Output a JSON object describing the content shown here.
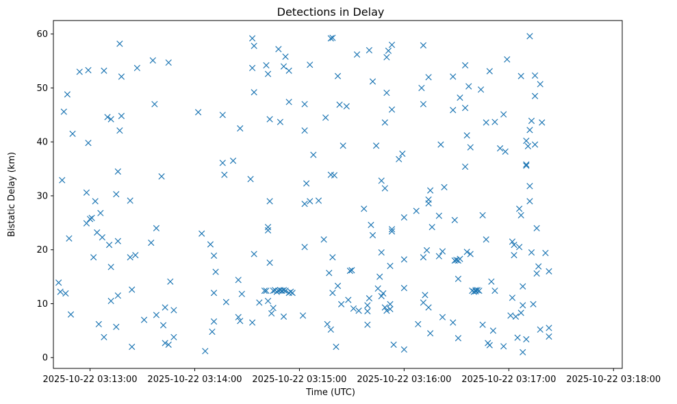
{
  "chart_data": {
    "type": "scatter",
    "title": "Detections in Delay",
    "xlabel": "Time (UTC)",
    "ylabel": "Bistatic Delay (km)",
    "marker": "x",
    "color": "#1f77b4",
    "grid": false,
    "xlim": [
      "2025-10-22 03:12:39",
      "2025-10-22 03:18:05"
    ],
    "ylim": [
      -2,
      62.5
    ],
    "x_ticks": [
      "2025-10-22 03:13:00",
      "2025-10-22 03:14:00",
      "2025-10-22 03:15:00",
      "2025-10-22 03:16:00",
      "2025-10-22 03:17:00",
      "2025-10-22 03:18:00"
    ],
    "y_ticks": [
      0,
      10,
      20,
      30,
      40,
      50,
      60
    ],
    "points": [
      [
        "2025-10-22 03:12:42",
        13.9
      ],
      [
        "2025-10-22 03:12:43",
        12.2
      ],
      [
        "2025-10-22 03:12:44",
        32.9
      ],
      [
        "2025-10-22 03:12:45",
        45.6
      ],
      [
        "2025-10-22 03:12:46",
        11.9
      ],
      [
        "2025-10-22 03:12:47",
        48.8
      ],
      [
        "2025-10-22 03:12:48",
        22.1
      ],
      [
        "2025-10-22 03:12:49",
        8.0
      ],
      [
        "2025-10-22 03:12:50",
        41.5
      ],
      [
        "2025-10-22 03:12:54",
        53.0
      ],
      [
        "2025-10-22 03:12:58",
        30.6
      ],
      [
        "2025-10-22 03:12:58",
        24.9
      ],
      [
        "2025-10-22 03:12:59",
        53.3
      ],
      [
        "2025-10-22 03:12:59",
        39.8
      ],
      [
        "2025-10-22 03:13:00",
        25.7
      ],
      [
        "2025-10-22 03:13:01",
        25.9
      ],
      [
        "2025-10-22 03:13:02",
        18.6
      ],
      [
        "2025-10-22 03:13:03",
        29.0
      ],
      [
        "2025-10-22 03:13:04",
        23.2
      ],
      [
        "2025-10-22 03:13:05",
        6.2
      ],
      [
        "2025-10-22 03:13:06",
        26.8
      ],
      [
        "2025-10-22 03:13:07",
        22.3
      ],
      [
        "2025-10-22 03:13:08",
        53.2
      ],
      [
        "2025-10-22 03:13:08",
        3.8
      ],
      [
        "2025-10-22 03:13:10",
        44.6
      ],
      [
        "2025-10-22 03:13:11",
        20.9
      ],
      [
        "2025-10-22 03:13:12",
        44.2
      ],
      [
        "2025-10-22 03:13:12",
        16.8
      ],
      [
        "2025-10-22 03:13:12",
        10.5
      ],
      [
        "2025-10-22 03:13:15",
        30.3
      ],
      [
        "2025-10-22 03:13:15",
        5.7
      ],
      [
        "2025-10-22 03:13:16",
        34.5
      ],
      [
        "2025-10-22 03:13:16",
        21.6
      ],
      [
        "2025-10-22 03:13:16",
        11.5
      ],
      [
        "2025-10-22 03:13:17",
        58.2
      ],
      [
        "2025-10-22 03:13:17",
        42.1
      ],
      [
        "2025-10-22 03:13:18",
        44.8
      ],
      [
        "2025-10-22 03:13:18",
        52.1
      ],
      [
        "2025-10-22 03:13:23",
        29.1
      ],
      [
        "2025-10-22 03:13:23",
        18.6
      ],
      [
        "2025-10-22 03:13:24",
        12.6
      ],
      [
        "2025-10-22 03:13:24",
        2.0
      ],
      [
        "2025-10-22 03:13:26",
        19.0
      ],
      [
        "2025-10-22 03:13:27",
        53.7
      ],
      [
        "2025-10-22 03:13:31",
        7.0
      ],
      [
        "2025-10-22 03:13:35",
        21.3
      ],
      [
        "2025-10-22 03:13:36",
        55.1
      ],
      [
        "2025-10-22 03:13:37",
        47.0
      ],
      [
        "2025-10-22 03:13:38",
        24.0
      ],
      [
        "2025-10-22 03:13:38",
        7.9
      ],
      [
        "2025-10-22 03:13:41",
        33.6
      ],
      [
        "2025-10-22 03:13:42",
        6.0
      ],
      [
        "2025-10-22 03:13:43",
        9.3
      ],
      [
        "2025-10-22 03:13:43",
        2.7
      ],
      [
        "2025-10-22 03:13:45",
        2.4
      ],
      [
        "2025-10-22 03:13:45",
        54.7
      ],
      [
        "2025-10-22 03:13:46",
        14.1
      ],
      [
        "2025-10-22 03:13:48",
        3.8
      ],
      [
        "2025-10-22 03:13:48",
        8.8
      ],
      [
        "2025-10-22 03:14:02",
        45.5
      ],
      [
        "2025-10-22 03:14:04",
        23.0
      ],
      [
        "2025-10-22 03:14:06",
        1.2
      ],
      [
        "2025-10-22 03:14:09",
        21.0
      ],
      [
        "2025-10-22 03:14:10",
        4.8
      ],
      [
        "2025-10-22 03:14:11",
        12.0
      ],
      [
        "2025-10-22 03:14:11",
        6.7
      ],
      [
        "2025-10-22 03:14:11",
        18.9
      ],
      [
        "2025-10-22 03:14:12",
        15.9
      ],
      [
        "2025-10-22 03:14:16",
        36.1
      ],
      [
        "2025-10-22 03:14:16",
        45.0
      ],
      [
        "2025-10-22 03:14:17",
        33.9
      ],
      [
        "2025-10-22 03:14:18",
        10.3
      ],
      [
        "2025-10-22 03:14:22",
        36.5
      ],
      [
        "2025-10-22 03:14:25",
        14.4
      ],
      [
        "2025-10-22 03:14:25",
        7.5
      ],
      [
        "2025-10-22 03:14:26",
        6.8
      ],
      [
        "2025-10-22 03:14:26",
        42.5
      ],
      [
        "2025-10-22 03:14:27",
        11.8
      ],
      [
        "2025-10-22 03:14:32",
        33.1
      ],
      [
        "2025-10-22 03:14:33",
        53.7
      ],
      [
        "2025-10-22 03:14:33",
        59.2
      ],
      [
        "2025-10-22 03:14:33",
        6.5
      ],
      [
        "2025-10-22 03:14:34",
        19.2
      ],
      [
        "2025-10-22 03:14:34",
        57.8
      ],
      [
        "2025-10-22 03:14:34",
        49.2
      ],
      [
        "2025-10-22 03:14:37",
        10.2
      ],
      [
        "2025-10-22 03:14:40",
        12.4
      ],
      [
        "2025-10-22 03:14:41",
        54.2
      ],
      [
        "2025-10-22 03:14:41",
        12.4
      ],
      [
        "2025-10-22 03:14:42",
        24.2
      ],
      [
        "2025-10-22 03:14:42",
        23.6
      ],
      [
        "2025-10-22 03:14:42",
        52.6
      ],
      [
        "2025-10-22 03:14:42",
        10.5
      ],
      [
        "2025-10-22 03:14:43",
        29.0
      ],
      [
        "2025-10-22 03:14:43",
        17.6
      ],
      [
        "2025-10-22 03:14:43",
        44.2
      ],
      [
        "2025-10-22 03:14:44",
        8.2
      ],
      [
        "2025-10-22 03:14:45",
        9.2
      ],
      [
        "2025-10-22 03:14:45",
        12.4
      ],
      [
        "2025-10-22 03:14:46",
        12.5
      ],
      [
        "2025-10-22 03:14:47",
        12.2
      ],
      [
        "2025-10-22 03:14:48",
        12.4
      ],
      [
        "2025-10-22 03:14:48",
        57.2
      ],
      [
        "2025-10-22 03:14:49",
        43.7
      ],
      [
        "2025-10-22 03:14:49",
        12.5
      ],
      [
        "2025-10-22 03:14:50",
        12.4
      ],
      [
        "2025-10-22 03:14:51",
        12.5
      ],
      [
        "2025-10-22 03:14:51",
        7.6
      ],
      [
        "2025-10-22 03:14:51",
        54.0
      ],
      [
        "2025-10-22 03:14:52",
        12.4
      ],
      [
        "2025-10-22 03:14:52",
        55.8
      ],
      [
        "2025-10-22 03:14:54",
        12.0
      ],
      [
        "2025-10-22 03:14:54",
        53.2
      ],
      [
        "2025-10-22 03:14:54",
        47.4
      ],
      [
        "2025-10-22 03:14:55",
        12.2
      ],
      [
        "2025-10-22 03:14:56",
        12.0
      ],
      [
        "2025-10-22 03:15:02",
        7.8
      ],
      [
        "2025-10-22 03:15:03",
        42.1
      ],
      [
        "2025-10-22 03:15:03",
        47.0
      ],
      [
        "2025-10-22 03:15:03",
        28.5
      ],
      [
        "2025-10-22 03:15:03",
        20.5
      ],
      [
        "2025-10-22 03:15:04",
        32.3
      ],
      [
        "2025-10-22 03:15:06",
        29.0
      ],
      [
        "2025-10-22 03:15:06",
        54.3
      ],
      [
        "2025-10-22 03:15:08",
        37.6
      ],
      [
        "2025-10-22 03:15:11",
        29.1
      ],
      [
        "2025-10-22 03:15:14",
        21.9
      ],
      [
        "2025-10-22 03:15:15",
        44.5
      ],
      [
        "2025-10-22 03:15:16",
        6.2
      ],
      [
        "2025-10-22 03:15:17",
        15.7
      ],
      [
        "2025-10-22 03:15:18",
        59.2
      ],
      [
        "2025-10-22 03:15:18",
        33.9
      ],
      [
        "2025-10-22 03:15:18",
        5.2
      ],
      [
        "2025-10-22 03:15:19",
        59.3
      ],
      [
        "2025-10-22 03:15:19",
        18.6
      ],
      [
        "2025-10-22 03:15:19",
        12.0
      ],
      [
        "2025-10-22 03:15:20",
        33.8
      ],
      [
        "2025-10-22 03:15:21",
        2.0
      ],
      [
        "2025-10-22 03:15:22",
        52.2
      ],
      [
        "2025-10-22 03:15:22",
        13.3
      ],
      [
        "2025-10-22 03:15:23",
        46.9
      ],
      [
        "2025-10-22 03:15:24",
        9.9
      ],
      [
        "2025-10-22 03:15:25",
        39.3
      ],
      [
        "2025-10-22 03:15:27",
        46.6
      ],
      [
        "2025-10-22 03:15:28",
        10.7
      ],
      [
        "2025-10-22 03:15:29",
        16.1
      ],
      [
        "2025-10-22 03:15:30",
        16.2
      ],
      [
        "2025-10-22 03:15:31",
        9.1
      ],
      [
        "2025-10-22 03:15:33",
        56.2
      ],
      [
        "2025-10-22 03:15:34",
        8.7
      ],
      [
        "2025-10-22 03:15:37",
        27.6
      ],
      [
        "2025-10-22 03:15:39",
        6.1
      ],
      [
        "2025-10-22 03:15:39",
        9.7
      ],
      [
        "2025-10-22 03:15:39",
        8.6
      ],
      [
        "2025-10-22 03:15:40",
        11.0
      ],
      [
        "2025-10-22 03:15:40",
        57.0
      ],
      [
        "2025-10-22 03:15:41",
        24.6
      ],
      [
        "2025-10-22 03:15:42",
        22.7
      ],
      [
        "2025-10-22 03:15:42",
        51.2
      ],
      [
        "2025-10-22 03:15:44",
        39.3
      ],
      [
        "2025-10-22 03:15:45",
        12.8
      ],
      [
        "2025-10-22 03:15:46",
        15.0
      ],
      [
        "2025-10-22 03:15:47",
        19.5
      ],
      [
        "2025-10-22 03:15:47",
        32.8
      ],
      [
        "2025-10-22 03:15:47",
        11.4
      ],
      [
        "2025-10-22 03:15:48",
        11.9
      ],
      [
        "2025-10-22 03:15:49",
        43.6
      ],
      [
        "2025-10-22 03:15:49",
        31.4
      ],
      [
        "2025-10-22 03:15:49",
        9.3
      ],
      [
        "2025-10-22 03:15:50",
        55.7
      ],
      [
        "2025-10-22 03:15:50",
        49.1
      ],
      [
        "2025-10-22 03:15:50",
        8.7
      ],
      [
        "2025-10-22 03:15:51",
        56.9
      ],
      [
        "2025-10-22 03:15:52",
        9.9
      ],
      [
        "2025-10-22 03:15:52",
        17.0
      ],
      [
        "2025-10-22 03:15:52",
        9.0
      ],
      [
        "2025-10-22 03:15:53",
        58.0
      ],
      [
        "2025-10-22 03:15:53",
        23.4
      ],
      [
        "2025-10-22 03:15:53",
        46.0
      ],
      [
        "2025-10-22 03:15:53",
        23.8
      ],
      [
        "2025-10-22 03:15:54",
        2.4
      ],
      [
        "2025-10-22 03:15:57",
        36.8
      ],
      [
        "2025-10-22 03:15:59",
        37.8
      ],
      [
        "2025-10-22 03:16:00",
        18.2
      ],
      [
        "2025-10-22 03:16:00",
        12.9
      ],
      [
        "2025-10-22 03:16:00",
        26.0
      ],
      [
        "2025-10-22 03:16:00",
        1.5
      ],
      [
        "2025-10-22 03:16:07",
        27.2
      ],
      [
        "2025-10-22 03:16:08",
        6.2
      ],
      [
        "2025-10-22 03:16:10",
        50.0
      ],
      [
        "2025-10-22 03:16:11",
        57.9
      ],
      [
        "2025-10-22 03:16:11",
        47.0
      ],
      [
        "2025-10-22 03:16:11",
        18.6
      ],
      [
        "2025-10-22 03:16:11",
        10.2
      ],
      [
        "2025-10-22 03:16:12",
        11.6
      ],
      [
        "2025-10-22 03:16:13",
        19.9
      ],
      [
        "2025-10-22 03:16:14",
        52.0
      ],
      [
        "2025-10-22 03:16:14",
        29.3
      ],
      [
        "2025-10-22 03:16:14",
        28.6
      ],
      [
        "2025-10-22 03:16:14",
        9.3
      ],
      [
        "2025-10-22 03:16:15",
        31.0
      ],
      [
        "2025-10-22 03:16:15",
        4.5
      ],
      [
        "2025-10-22 03:16:16",
        24.2
      ],
      [
        "2025-10-22 03:16:20",
        26.3
      ],
      [
        "2025-10-22 03:16:20",
        18.8
      ],
      [
        "2025-10-22 03:16:21",
        39.5
      ],
      [
        "2025-10-22 03:16:22",
        19.7
      ],
      [
        "2025-10-22 03:16:22",
        7.5
      ],
      [
        "2025-10-22 03:16:23",
        31.6
      ],
      [
        "2025-10-22 03:16:28",
        6.5
      ],
      [
        "2025-10-22 03:16:28",
        45.9
      ],
      [
        "2025-10-22 03:16:28",
        52.1
      ],
      [
        "2025-10-22 03:16:29",
        18.0
      ],
      [
        "2025-10-22 03:16:29",
        25.5
      ],
      [
        "2025-10-22 03:16:30",
        18.1
      ],
      [
        "2025-10-22 03:16:31",
        18.0
      ],
      [
        "2025-10-22 03:16:31",
        3.6
      ],
      [
        "2025-10-22 03:16:31",
        14.6
      ],
      [
        "2025-10-22 03:16:32",
        48.2
      ],
      [
        "2025-10-22 03:16:32",
        18.3
      ],
      [
        "2025-10-22 03:16:35",
        54.2
      ],
      [
        "2025-10-22 03:16:35",
        46.3
      ],
      [
        "2025-10-22 03:16:35",
        35.4
      ],
      [
        "2025-10-22 03:16:36",
        41.2
      ],
      [
        "2025-10-22 03:16:36",
        19.6
      ],
      [
        "2025-10-22 03:16:37",
        50.3
      ],
      [
        "2025-10-22 03:16:38",
        39.0
      ],
      [
        "2025-10-22 03:16:38",
        19.2
      ],
      [
        "2025-10-22 03:16:39",
        12.4
      ],
      [
        "2025-10-22 03:16:40",
        12.2
      ],
      [
        "2025-10-22 03:16:41",
        12.5
      ],
      [
        "2025-10-22 03:16:41",
        12.3
      ],
      [
        "2025-10-22 03:16:42",
        12.5
      ],
      [
        "2025-10-22 03:16:43",
        12.4
      ],
      [
        "2025-10-22 03:16:44",
        49.7
      ],
      [
        "2025-10-22 03:16:45",
        26.4
      ],
      [
        "2025-10-22 03:16:45",
        6.1
      ],
      [
        "2025-10-22 03:16:47",
        21.9
      ],
      [
        "2025-10-22 03:16:47",
        43.6
      ],
      [
        "2025-10-22 03:16:48",
        2.7
      ],
      [
        "2025-10-22 03:16:49",
        2.3
      ],
      [
        "2025-10-22 03:16:49",
        53.1
      ],
      [
        "2025-10-22 03:16:50",
        14.1
      ],
      [
        "2025-10-22 03:16:51",
        5.0
      ],
      [
        "2025-10-22 03:16:52",
        43.7
      ],
      [
        "2025-10-22 03:16:52",
        12.4
      ],
      [
        "2025-10-22 03:16:55",
        38.8
      ],
      [
        "2025-10-22 03:16:57",
        45.1
      ],
      [
        "2025-10-22 03:16:57",
        2.1
      ],
      [
        "2025-10-22 03:16:58",
        38.2
      ],
      [
        "2025-10-22 03:16:59",
        55.3
      ],
      [
        "2025-10-22 03:17:01",
        7.8
      ],
      [
        "2025-10-22 03:17:02",
        21.5
      ],
      [
        "2025-10-22 03:17:02",
        11.1
      ],
      [
        "2025-10-22 03:17:03",
        20.9
      ],
      [
        "2025-10-22 03:17:03",
        19.0
      ],
      [
        "2025-10-22 03:17:04",
        7.6
      ],
      [
        "2025-10-22 03:17:05",
        3.7
      ],
      [
        "2025-10-22 03:17:06",
        27.6
      ],
      [
        "2025-10-22 03:17:06",
        20.5
      ],
      [
        "2025-10-22 03:17:07",
        26.4
      ],
      [
        "2025-10-22 03:17:07",
        52.2
      ],
      [
        "2025-10-22 03:17:07",
        8.3
      ],
      [
        "2025-10-22 03:17:08",
        9.7
      ],
      [
        "2025-10-22 03:17:08",
        1.0
      ],
      [
        "2025-10-22 03:17:08",
        13.2
      ],
      [
        "2025-10-22 03:17:10",
        35.6
      ],
      [
        "2025-10-22 03:17:10",
        35.8
      ],
      [
        "2025-10-22 03:17:10",
        40.2
      ],
      [
        "2025-10-22 03:17:10",
        3.4
      ],
      [
        "2025-10-22 03:17:11",
        39.2
      ],
      [
        "2025-10-22 03:17:12",
        59.6
      ],
      [
        "2025-10-22 03:17:12",
        42.2
      ],
      [
        "2025-10-22 03:17:12",
        31.8
      ],
      [
        "2025-10-22 03:17:12",
        29.0
      ],
      [
        "2025-10-22 03:17:13",
        19.5
      ],
      [
        "2025-10-22 03:17:13",
        43.9
      ],
      [
        "2025-10-22 03:17:14",
        9.9
      ],
      [
        "2025-10-22 03:17:15",
        52.3
      ],
      [
        "2025-10-22 03:17:15",
        48.5
      ],
      [
        "2025-10-22 03:17:15",
        39.5
      ],
      [
        "2025-10-22 03:17:16",
        24.0
      ],
      [
        "2025-10-22 03:17:16",
        15.6
      ],
      [
        "2025-10-22 03:17:17",
        16.9
      ],
      [
        "2025-10-22 03:17:18",
        5.2
      ],
      [
        "2025-10-22 03:17:18",
        50.7
      ],
      [
        "2025-10-22 03:17:19",
        43.6
      ],
      [
        "2025-10-22 03:17:21",
        19.4
      ],
      [
        "2025-10-22 03:17:23",
        5.5
      ],
      [
        "2025-10-22 03:17:23",
        3.9
      ],
      [
        "2025-10-22 03:17:23",
        16.0
      ]
    ]
  }
}
